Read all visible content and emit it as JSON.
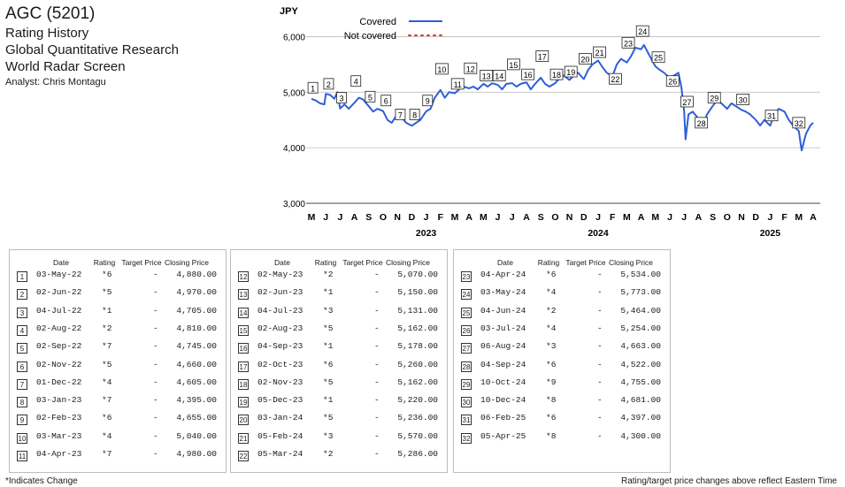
{
  "header": {
    "company": "AGC (5201)",
    "title1": "Rating History",
    "title2": "Global Quantitative Research",
    "title3": "World Radar Screen",
    "analyst": "Analyst: Chris Montagu"
  },
  "chart_data": {
    "type": "line",
    "ylabel": "JPY",
    "ylim": [
      3000,
      6500
    ],
    "yticks": [
      "3,000",
      "4,000",
      "5,000",
      "6,000"
    ],
    "ytick_values": [
      3000,
      4000,
      5000,
      6000
    ],
    "month_labels": [
      "M",
      "J",
      "J",
      "A",
      "S",
      "O",
      "N",
      "D",
      "J",
      "F",
      "M",
      "A",
      "M",
      "J",
      "J",
      "A",
      "S",
      "O",
      "N",
      "D",
      "J",
      "F",
      "M",
      "A",
      "M",
      "J",
      "J",
      "A",
      "S",
      "O",
      "N",
      "D",
      "J",
      "F",
      "M",
      "A"
    ],
    "year_labels": [
      {
        "label": "2023",
        "month_index": 8
      },
      {
        "label": "2024",
        "month_index": 20
      },
      {
        "label": "2025",
        "month_index": 32
      }
    ],
    "legend": [
      {
        "label": "Covered",
        "style": "solid",
        "color": "#2f5fd8"
      },
      {
        "label": "Not covered",
        "style": "dotted",
        "color": "#e0342b"
      }
    ],
    "series": [
      {
        "name": "Covered",
        "color": "#2f5fd8",
        "points": [
          [
            0,
            4880
          ],
          [
            0.3,
            4850
          ],
          [
            0.6,
            4800
          ],
          [
            0.9,
            4780
          ],
          [
            1.0,
            4970
          ],
          [
            1.3,
            4950
          ],
          [
            1.6,
            4880
          ],
          [
            1.8,
            5000
          ],
          [
            2.0,
            4705
          ],
          [
            2.3,
            4780
          ],
          [
            2.6,
            4700
          ],
          [
            3.0,
            4810
          ],
          [
            3.3,
            4900
          ],
          [
            3.6,
            4870
          ],
          [
            4.0,
            4745
          ],
          [
            4.3,
            4650
          ],
          [
            4.6,
            4700
          ],
          [
            5.0,
            4660
          ],
          [
            5.3,
            4500
          ],
          [
            5.6,
            4450
          ],
          [
            6.0,
            4605
          ],
          [
            6.3,
            4550
          ],
          [
            6.6,
            4450
          ],
          [
            7.0,
            4395
          ],
          [
            7.3,
            4450
          ],
          [
            7.6,
            4500
          ],
          [
            8.0,
            4655
          ],
          [
            8.3,
            4700
          ],
          [
            8.6,
            4900
          ],
          [
            9.0,
            5040
          ],
          [
            9.3,
            4900
          ],
          [
            9.6,
            5000
          ],
          [
            10.0,
            4980
          ],
          [
            10.3,
            5050
          ],
          [
            10.6,
            5100
          ],
          [
            11.0,
            5070
          ],
          [
            11.3,
            5100
          ],
          [
            11.6,
            5050
          ],
          [
            12.0,
            5150
          ],
          [
            12.3,
            5100
          ],
          [
            12.6,
            5160
          ],
          [
            13.0,
            5131
          ],
          [
            13.3,
            5050
          ],
          [
            13.6,
            5150
          ],
          [
            14.0,
            5162
          ],
          [
            14.3,
            5100
          ],
          [
            14.6,
            5150
          ],
          [
            15.0,
            5178
          ],
          [
            15.3,
            5050
          ],
          [
            15.6,
            5150
          ],
          [
            16.0,
            5260
          ],
          [
            16.3,
            5150
          ],
          [
            16.6,
            5100
          ],
          [
            17.0,
            5162
          ],
          [
            17.3,
            5250
          ],
          [
            17.6,
            5300
          ],
          [
            18.0,
            5220
          ],
          [
            18.3,
            5300
          ],
          [
            18.6,
            5350
          ],
          [
            19.0,
            5236
          ],
          [
            19.3,
            5400
          ],
          [
            19.6,
            5500
          ],
          [
            20.0,
            5570
          ],
          [
            20.3,
            5450
          ],
          [
            20.6,
            5350
          ],
          [
            21.0,
            5286
          ],
          [
            21.3,
            5500
          ],
          [
            21.6,
            5600
          ],
          [
            22.0,
            5534
          ],
          [
            22.3,
            5650
          ],
          [
            22.6,
            5800
          ],
          [
            23.0,
            5773
          ],
          [
            23.2,
            5850
          ],
          [
            23.5,
            5700
          ],
          [
            23.8,
            5550
          ],
          [
            24.0,
            5464
          ],
          [
            24.3,
            5400
          ],
          [
            24.6,
            5350
          ],
          [
            25.0,
            5254
          ],
          [
            25.3,
            5300
          ],
          [
            25.6,
            5350
          ],
          [
            25.8,
            5100
          ],
          [
            26.0,
            4663
          ],
          [
            26.1,
            4150
          ],
          [
            26.3,
            4600
          ],
          [
            26.6,
            4650
          ],
          [
            27.0,
            4522
          ],
          [
            27.3,
            4400
          ],
          [
            27.6,
            4600
          ],
          [
            28.0,
            4755
          ],
          [
            28.3,
            4850
          ],
          [
            28.6,
            4800
          ],
          [
            29.0,
            4700
          ],
          [
            29.3,
            4800
          ],
          [
            29.6,
            4750
          ],
          [
            30.0,
            4681
          ],
          [
            30.3,
            4650
          ],
          [
            30.6,
            4600
          ],
          [
            31.0,
            4500
          ],
          [
            31.3,
            4400
          ],
          [
            31.6,
            4500
          ],
          [
            32.0,
            4397
          ],
          [
            32.3,
            4600
          ],
          [
            32.6,
            4700
          ],
          [
            33.0,
            4650
          ],
          [
            33.3,
            4500
          ],
          [
            33.6,
            4400
          ],
          [
            34.0,
            4300
          ],
          [
            34.2,
            3950
          ],
          [
            34.5,
            4250
          ],
          [
            34.8,
            4400
          ],
          [
            35.0,
            4450
          ]
        ]
      }
    ],
    "markers": [
      {
        "n": "1",
        "x": 0.1,
        "y": 5080
      },
      {
        "n": "2",
        "x": 1.2,
        "y": 5150
      },
      {
        "n": "3",
        "x": 2.1,
        "y": 4900
      },
      {
        "n": "4",
        "x": 3.1,
        "y": 5200
      },
      {
        "n": "5",
        "x": 4.1,
        "y": 4920
      },
      {
        "n": "6",
        "x": 5.2,
        "y": 4850
      },
      {
        "n": "7",
        "x": 6.2,
        "y": 4600
      },
      {
        "n": "8",
        "x": 7.2,
        "y": 4600
      },
      {
        "n": "9",
        "x": 8.1,
        "y": 4850
      },
      {
        "n": "10",
        "x": 9.1,
        "y": 5420
      },
      {
        "n": "11",
        "x": 10.2,
        "y": 5150
      },
      {
        "n": "12",
        "x": 11.1,
        "y": 5430
      },
      {
        "n": "13",
        "x": 12.2,
        "y": 5300
      },
      {
        "n": "14",
        "x": 13.1,
        "y": 5300
      },
      {
        "n": "15",
        "x": 14.1,
        "y": 5500
      },
      {
        "n": "16",
        "x": 15.1,
        "y": 5320
      },
      {
        "n": "17",
        "x": 16.1,
        "y": 5650
      },
      {
        "n": "18",
        "x": 17.1,
        "y": 5320
      },
      {
        "n": "19",
        "x": 18.1,
        "y": 5370
      },
      {
        "n": "20",
        "x": 19.1,
        "y": 5600
      },
      {
        "n": "21",
        "x": 20.1,
        "y": 5720
      },
      {
        "n": "22",
        "x": 21.2,
        "y": 5240
      },
      {
        "n": "23",
        "x": 22.1,
        "y": 5890
      },
      {
        "n": "24",
        "x": 23.1,
        "y": 6100
      },
      {
        "n": "25",
        "x": 24.2,
        "y": 5630
      },
      {
        "n": "26",
        "x": 25.2,
        "y": 5200
      },
      {
        "n": "27",
        "x": 26.2,
        "y": 4830
      },
      {
        "n": "28",
        "x": 27.2,
        "y": 4450
      },
      {
        "n": "29",
        "x": 28.1,
        "y": 4900
      },
      {
        "n": "30",
        "x": 30.1,
        "y": 4870
      },
      {
        "n": "31",
        "x": 32.1,
        "y": 4580
      },
      {
        "n": "32",
        "x": 34.0,
        "y": 4450
      }
    ]
  },
  "tables": [
    {
      "header": [
        "Date",
        "Rating",
        "Target Price",
        "Closing Price"
      ],
      "rows": [
        [
          "1",
          "03-May-22",
          "*6",
          "-",
          "4,880.00"
        ],
        [
          "2",
          "02-Jun-22",
          "*5",
          "-",
          "4,970.00"
        ],
        [
          "3",
          "04-Jul-22",
          "*1",
          "-",
          "4,705.00"
        ],
        [
          "4",
          "02-Aug-22",
          "*2",
          "-",
          "4,810.00"
        ],
        [
          "5",
          "02-Sep-22",
          "*7",
          "-",
          "4,745.00"
        ],
        [
          "6",
          "02-Nov-22",
          "*5",
          "-",
          "4,660.00"
        ],
        [
          "7",
          "01-Dec-22",
          "*4",
          "-",
          "4,605.00"
        ],
        [
          "8",
          "03-Jan-23",
          "*7",
          "-",
          "4,395.00"
        ],
        [
          "9",
          "02-Feb-23",
          "*6",
          "-",
          "4,655.00"
        ],
        [
          "10",
          "03-Mar-23",
          "*4",
          "-",
          "5,040.00"
        ],
        [
          "11",
          "04-Apr-23",
          "*7",
          "-",
          "4,980.00"
        ]
      ]
    },
    {
      "header": [
        "Date",
        "Rating",
        "Target Price",
        "Closing Price"
      ],
      "rows": [
        [
          "12",
          "02-May-23",
          "*2",
          "-",
          "5,070.00"
        ],
        [
          "13",
          "02-Jun-23",
          "*1",
          "-",
          "5,150.00"
        ],
        [
          "14",
          "04-Jul-23",
          "*3",
          "-",
          "5,131.00"
        ],
        [
          "15",
          "02-Aug-23",
          "*5",
          "-",
          "5,162.00"
        ],
        [
          "16",
          "04-Sep-23",
          "*1",
          "-",
          "5,178.00"
        ],
        [
          "17",
          "02-Oct-23",
          "*6",
          "-",
          "5,260.00"
        ],
        [
          "18",
          "02-Nov-23",
          "*5",
          "-",
          "5,162.00"
        ],
        [
          "19",
          "05-Dec-23",
          "*1",
          "-",
          "5,220.00"
        ],
        [
          "20",
          "03-Jan-24",
          "*5",
          "-",
          "5,236.00"
        ],
        [
          "21",
          "05-Feb-24",
          "*3",
          "-",
          "5,570.00"
        ],
        [
          "22",
          "05-Mar-24",
          "*2",
          "-",
          "5,286.00"
        ]
      ]
    },
    {
      "header": [
        "Date",
        "Rating",
        "Target Price",
        "Closing Price"
      ],
      "rows": [
        [
          "23",
          "04-Apr-24",
          "*6",
          "-",
          "5,534.00"
        ],
        [
          "24",
          "03-May-24",
          "*4",
          "-",
          "5,773.00"
        ],
        [
          "25",
          "04-Jun-24",
          "*2",
          "-",
          "5,464.00"
        ],
        [
          "26",
          "03-Jul-24",
          "*4",
          "-",
          "5,254.00"
        ],
        [
          "27",
          "06-Aug-24",
          "*3",
          "-",
          "4,663.00"
        ],
        [
          "28",
          "04-Sep-24",
          "*6",
          "-",
          "4,522.00"
        ],
        [
          "29",
          "10-Oct-24",
          "*9",
          "-",
          "4,755.00"
        ],
        [
          "30",
          "10-Dec-24",
          "*8",
          "-",
          "4,681.00"
        ],
        [
          "31",
          "06-Feb-25",
          "*6",
          "-",
          "4,397.00"
        ],
        [
          "32",
          "05-Apr-25",
          "*8",
          "-",
          "4,300.00"
        ]
      ]
    }
  ],
  "notes": {
    "left": "*Indicates Change",
    "right": "Rating/target price changes above reflect Eastern Time"
  }
}
